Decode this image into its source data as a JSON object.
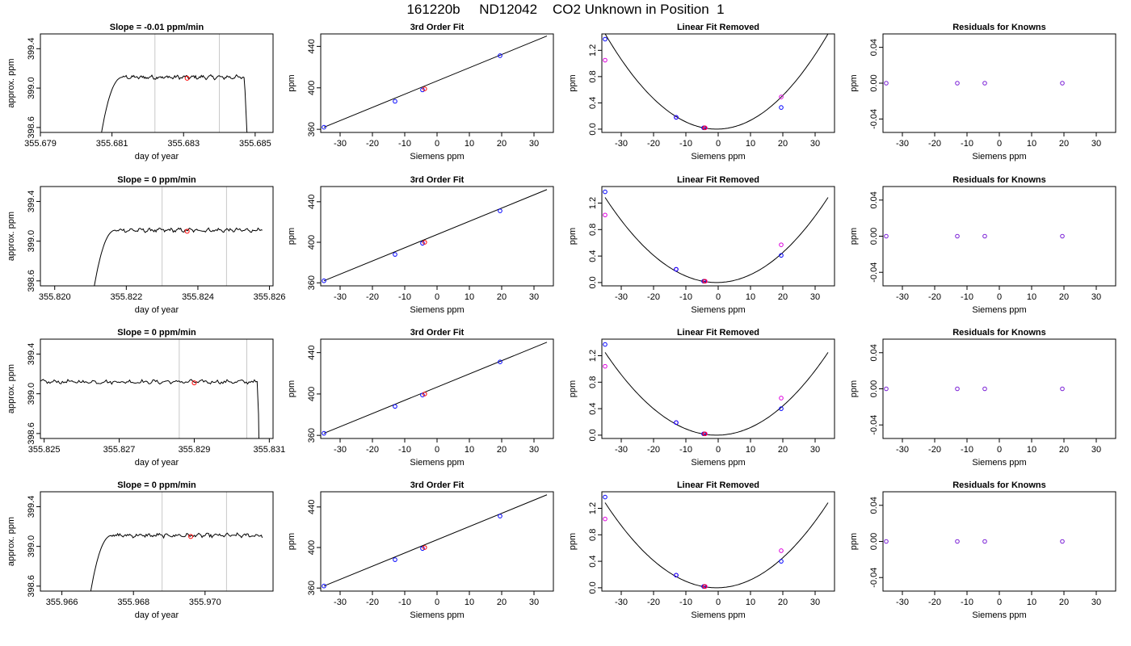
{
  "page": {
    "title": "161220b     ND12042    CO2 Unknown in Position  1"
  },
  "chart_data": [
    {
      "type": "line",
      "row": 1,
      "panel": "trace",
      "title": "Slope =  -0.01  ppm/min",
      "xlabel": "day of year",
      "ylabel": "approx. ppm",
      "xlim": [
        355.679,
        355.6855
      ],
      "ylim": [
        398.55,
        399.55
      ],
      "xticks": [
        355.679,
        355.681,
        355.683,
        355.685
      ],
      "xtick_labels": [
        "355.679",
        "355.681",
        "355.683",
        "355.685"
      ],
      "yticks": [
        398.6,
        399.0,
        399.4
      ],
      "ytick_labels": [
        "398.6",
        "399.0",
        "399.4"
      ],
      "vlines": [
        355.6822,
        355.684
      ],
      "rise": {
        "start": 355.6806,
        "plateau_start": 355.6813
      },
      "plateau": 399.11,
      "end": {
        "drop_start": 355.6847,
        "drop_end": 355.68485
      },
      "data_end": 355.68485,
      "marker": {
        "x": 355.6831,
        "y": 399.1,
        "color": "#ff0000"
      }
    },
    {
      "type": "scatter",
      "row": 1,
      "panel": "fit",
      "title": "3rd Order Fit",
      "xlabel": "Siemens ppm",
      "ylabel": "ppm",
      "xlim": [
        -36,
        36
      ],
      "ylim": [
        357,
        452
      ],
      "xticks": [
        -30,
        -20,
        -10,
        0,
        10,
        20,
        30
      ],
      "yticks": [
        360,
        400,
        440
      ],
      "points": [
        {
          "x": -35,
          "y": 362
        },
        {
          "x": -13,
          "y": 387
        },
        {
          "x": -4.5,
          "y": 398
        },
        {
          "x": -3.8,
          "y": 399
        },
        {
          "x": 19.5,
          "y": 431
        }
      ],
      "fit_line": [
        {
          "x": -35,
          "y": 362
        },
        {
          "x": 34,
          "y": 450
        }
      ]
    },
    {
      "type": "scatter",
      "row": 1,
      "panel": "linear_removed",
      "title": "Linear Fit Removed",
      "xlabel": "Siemens ppm",
      "ylabel": "ppm",
      "xlim": [
        -36,
        36
      ],
      "ylim": [
        -0.05,
        1.45
      ],
      "xticks": [
        -30,
        -20,
        -10,
        0,
        10,
        20,
        30
      ],
      "yticks": [
        0.0,
        0.4,
        0.8,
        1.2
      ],
      "curve_min": -0.5,
      "curve_coeff": 0.00122,
      "curve_offset": 0.0,
      "blue_points": [
        {
          "x": -35,
          "y": 1.37
        },
        {
          "x": -13,
          "y": 0.18
        },
        {
          "x": -4.5,
          "y": 0.02
        },
        {
          "x": 19.5,
          "y": 0.33
        }
      ],
      "magenta_points": [
        {
          "x": -35,
          "y": 1.05
        },
        {
          "x": -13,
          "y": 0.18
        },
        {
          "x": -4,
          "y": 0.02
        },
        {
          "x": 19.5,
          "y": 0.49
        }
      ],
      "red_points": [
        {
          "x": -4.2,
          "y": 0.02
        }
      ]
    },
    {
      "type": "scatter",
      "row": 1,
      "panel": "residuals",
      "title": "Residuals for Knowns",
      "xlabel": "Siemens ppm",
      "ylabel": "ppm",
      "xlim": [
        -36,
        36
      ],
      "ylim": [
        -0.055,
        0.055
      ],
      "xticks": [
        -30,
        -20,
        -10,
        0,
        10,
        20,
        30
      ],
      "yticks": [
        -0.04,
        0.0,
        0.04
      ],
      "ytick_labels": [
        "-0.04",
        "0.00",
        "0.04"
      ],
      "points": [
        {
          "x": -35,
          "y": 0
        },
        {
          "x": -13,
          "y": 0
        },
        {
          "x": -4.5,
          "y": 0
        },
        {
          "x": 19.5,
          "y": 0
        }
      ]
    },
    {
      "type": "line",
      "row": 2,
      "panel": "trace",
      "title": "Slope =  0  ppm/min",
      "xlabel": "day of year",
      "ylabel": "approx. ppm",
      "xlim": [
        355.8196,
        355.8261
      ],
      "ylim": [
        398.55,
        399.55
      ],
      "xticks": [
        355.82,
        355.822,
        355.824,
        355.826
      ],
      "xtick_labels": [
        "355.820",
        "355.822",
        "355.824",
        "355.826"
      ],
      "yticks": [
        398.6,
        399.0,
        399.4
      ],
      "ytick_labels": [
        "398.6",
        "399.0",
        "399.4"
      ],
      "vlines": [
        355.823,
        355.8248
      ],
      "rise": {
        "start": 355.821,
        "plateau_start": 355.8217
      },
      "plateau": 399.11,
      "end": null,
      "data_end": 355.8258,
      "marker": {
        "x": 355.8237,
        "y": 399.1,
        "color": "#ff0000"
      }
    },
    {
      "type": "scatter",
      "row": 2,
      "panel": "fit",
      "title": "3rd Order Fit",
      "xlabel": "Siemens ppm",
      "ylabel": "ppm",
      "xlim": [
        -36,
        36
      ],
      "ylim": [
        357,
        455
      ],
      "xticks": [
        -30,
        -20,
        -10,
        0,
        10,
        20,
        30
      ],
      "yticks": [
        360,
        400,
        440
      ],
      "points": [
        {
          "x": -35,
          "y": 362
        },
        {
          "x": -13,
          "y": 388
        },
        {
          "x": -4.5,
          "y": 399
        },
        {
          "x": -3.8,
          "y": 400
        },
        {
          "x": 19.5,
          "y": 431
        }
      ],
      "fit_line": [
        {
          "x": -35,
          "y": 362
        },
        {
          "x": 34,
          "y": 452
        }
      ]
    },
    {
      "type": "scatter",
      "row": 2,
      "panel": "linear_removed",
      "title": "Linear Fit Removed",
      "xlabel": "Siemens ppm",
      "ylabel": "ppm",
      "xlim": [
        -36,
        36
      ],
      "ylim": [
        -0.05,
        1.45
      ],
      "xticks": [
        -30,
        -20,
        -10,
        0,
        10,
        20,
        30
      ],
      "yticks": [
        0.0,
        0.4,
        0.8,
        1.2
      ],
      "curve_min": -0.5,
      "curve_coeff": 0.00108,
      "curve_offset": 0.0,
      "blue_points": [
        {
          "x": -35,
          "y": 1.37
        },
        {
          "x": -13,
          "y": 0.2
        },
        {
          "x": -4.5,
          "y": 0.02
        },
        {
          "x": 19.5,
          "y": 0.41
        }
      ],
      "magenta_points": [
        {
          "x": -35,
          "y": 1.02
        },
        {
          "x": -13,
          "y": 0.2
        },
        {
          "x": -4,
          "y": 0.02
        },
        {
          "x": 19.5,
          "y": 0.57
        }
      ],
      "red_points": [
        {
          "x": -4.2,
          "y": 0.02
        }
      ]
    },
    {
      "type": "scatter",
      "row": 2,
      "panel": "residuals",
      "title": "Residuals for Knowns",
      "xlabel": "Siemens ppm",
      "ylabel": "ppm",
      "xlim": [
        -36,
        36
      ],
      "ylim": [
        -0.055,
        0.055
      ],
      "xticks": [
        -30,
        -20,
        -10,
        0,
        10,
        20,
        30
      ],
      "yticks": [
        -0.04,
        0.0,
        0.04
      ],
      "ytick_labels": [
        "-0.04",
        "0.00",
        "0.04"
      ],
      "points": [
        {
          "x": -35,
          "y": 0
        },
        {
          "x": -13,
          "y": 0
        },
        {
          "x": -4.5,
          "y": 0
        },
        {
          "x": 19.5,
          "y": 0
        }
      ]
    },
    {
      "type": "line",
      "row": 3,
      "panel": "trace",
      "title": "Slope =  0  ppm/min",
      "xlabel": "day of year",
      "ylabel": "approx. ppm",
      "xlim": [
        355.8249,
        355.8311
      ],
      "ylim": [
        398.55,
        399.55
      ],
      "xticks": [
        355.825,
        355.827,
        355.829,
        355.831
      ],
      "xtick_labels": [
        "355.825",
        "355.827",
        "355.829",
        "355.831"
      ],
      "yticks": [
        398.6,
        399.0,
        399.4
      ],
      "ytick_labels": [
        "398.6",
        "399.0",
        "399.4"
      ],
      "vlines": [
        355.8286,
        355.8304
      ],
      "rise": null,
      "plateau": 399.12,
      "end": {
        "drop_start": 355.8307,
        "drop_end": 355.83075
      },
      "data_end": 355.83075,
      "marker": {
        "x": 355.829,
        "y": 399.11,
        "color": "#ff0000"
      }
    },
    {
      "type": "scatter",
      "row": 3,
      "panel": "fit",
      "title": "3rd Order Fit",
      "xlabel": "Siemens ppm",
      "ylabel": "ppm",
      "xlim": [
        -36,
        36
      ],
      "ylim": [
        357,
        453
      ],
      "xticks": [
        -30,
        -20,
        -10,
        0,
        10,
        20,
        30
      ],
      "yticks": [
        360,
        400,
        440
      ],
      "points": [
        {
          "x": -35,
          "y": 362
        },
        {
          "x": -13,
          "y": 388
        },
        {
          "x": -4.5,
          "y": 399
        },
        {
          "x": -3.8,
          "y": 400
        },
        {
          "x": 19.5,
          "y": 431
        }
      ],
      "fit_line": [
        {
          "x": -35,
          "y": 362
        },
        {
          "x": 34,
          "y": 450
        }
      ]
    },
    {
      "type": "scatter",
      "row": 3,
      "panel": "linear_removed",
      "title": "Linear Fit Removed",
      "xlabel": "Siemens ppm",
      "ylabel": "ppm",
      "xlim": [
        -36,
        36
      ],
      "ylim": [
        -0.05,
        1.45
      ],
      "xticks": [
        -30,
        -20,
        -10,
        0,
        10,
        20,
        30
      ],
      "yticks": [
        0.0,
        0.4,
        0.8,
        1.2
      ],
      "curve_min": -0.5,
      "curve_coeff": 0.00105,
      "curve_offset": 0.0,
      "blue_points": [
        {
          "x": -35,
          "y": 1.37
        },
        {
          "x": -13,
          "y": 0.19
        },
        {
          "x": -4.5,
          "y": 0.02
        },
        {
          "x": 19.5,
          "y": 0.4
        }
      ],
      "magenta_points": [
        {
          "x": -35,
          "y": 1.04
        },
        {
          "x": -13,
          "y": 0.19
        },
        {
          "x": -4,
          "y": 0.02
        },
        {
          "x": 19.5,
          "y": 0.56
        }
      ],
      "red_points": [
        {
          "x": -4.2,
          "y": 0.02
        }
      ]
    },
    {
      "type": "scatter",
      "row": 3,
      "panel": "residuals",
      "title": "Residuals for Knowns",
      "xlabel": "Siemens ppm",
      "ylabel": "ppm",
      "xlim": [
        -36,
        36
      ],
      "ylim": [
        -0.055,
        0.055
      ],
      "xticks": [
        -30,
        -20,
        -10,
        0,
        10,
        20,
        30
      ],
      "yticks": [
        -0.04,
        0.0,
        0.04
      ],
      "ytick_labels": [
        "-0.04",
        "0.00",
        "0.04"
      ],
      "points": [
        {
          "x": -35,
          "y": 0
        },
        {
          "x": -13,
          "y": 0
        },
        {
          "x": -4.5,
          "y": 0
        },
        {
          "x": 19.5,
          "y": 0
        }
      ]
    },
    {
      "type": "line",
      "row": 4,
      "panel": "trace",
      "title": "Slope =  0  ppm/min",
      "xlabel": "day of year",
      "ylabel": "approx. ppm",
      "xlim": [
        355.9654,
        355.9719
      ],
      "ylim": [
        398.55,
        399.55
      ],
      "xticks": [
        355.966,
        355.968,
        355.97
      ],
      "xtick_labels": [
        "355.966",
        "355.968",
        "355.970"
      ],
      "yticks": [
        398.6,
        399.0,
        399.4
      ],
      "ytick_labels": [
        "398.6",
        "399.0",
        "399.4"
      ],
      "vlines": [
        355.9688,
        355.9706
      ],
      "rise": {
        "start": 355.9667,
        "plateau_start": 355.9674
      },
      "plateau": 399.11,
      "end": null,
      "data_end": 355.9716,
      "marker": {
        "x": 355.9696,
        "y": 399.1,
        "color": "#ff0000"
      }
    },
    {
      "type": "scatter",
      "row": 4,
      "panel": "fit",
      "title": "3rd Order Fit",
      "xlabel": "Siemens ppm",
      "ylabel": "ppm",
      "xlim": [
        -36,
        36
      ],
      "ylim": [
        357,
        455
      ],
      "xticks": [
        -30,
        -20,
        -10,
        0,
        10,
        20,
        30
      ],
      "yticks": [
        360,
        400,
        440
      ],
      "points": [
        {
          "x": -35,
          "y": 362
        },
        {
          "x": -13,
          "y": 388
        },
        {
          "x": -4.5,
          "y": 399
        },
        {
          "x": -3.8,
          "y": 400
        },
        {
          "x": 19.5,
          "y": 431
        }
      ],
      "fit_line": [
        {
          "x": -35,
          "y": 362
        },
        {
          "x": 34,
          "y": 452
        }
      ]
    },
    {
      "type": "scatter",
      "row": 4,
      "panel": "linear_removed",
      "title": "Linear Fit Removed",
      "xlabel": "Siemens ppm",
      "ylabel": "ppm",
      "xlim": [
        -36,
        36
      ],
      "ylim": [
        -0.05,
        1.45
      ],
      "xticks": [
        -30,
        -20,
        -10,
        0,
        10,
        20,
        30
      ],
      "yticks": [
        0.0,
        0.4,
        0.8,
        1.2
      ],
      "curve_min": -0.5,
      "curve_coeff": 0.00108,
      "curve_offset": 0.0,
      "blue_points": [
        {
          "x": -35,
          "y": 1.37
        },
        {
          "x": -13,
          "y": 0.19
        },
        {
          "x": -4.5,
          "y": 0.02
        },
        {
          "x": 19.5,
          "y": 0.4
        }
      ],
      "magenta_points": [
        {
          "x": -35,
          "y": 1.04
        },
        {
          "x": -13,
          "y": 0.19
        },
        {
          "x": -4,
          "y": 0.02
        },
        {
          "x": 19.5,
          "y": 0.56
        }
      ],
      "red_points": [
        {
          "x": -4.2,
          "y": 0.02
        }
      ]
    },
    {
      "type": "scatter",
      "row": 4,
      "panel": "residuals",
      "title": "Residuals for Knowns",
      "xlabel": "Siemens ppm",
      "ylabel": "ppm",
      "xlim": [
        -36,
        36
      ],
      "ylim": [
        -0.055,
        0.055
      ],
      "xticks": [
        -30,
        -20,
        -10,
        0,
        10,
        20,
        30
      ],
      "yticks": [
        -0.04,
        0.0,
        0.04
      ],
      "ytick_labels": [
        "-0.04",
        "0.00",
        "0.04"
      ],
      "points": [
        {
          "x": -35,
          "y": 0
        },
        {
          "x": -13,
          "y": 0
        },
        {
          "x": -4.5,
          "y": 0
        },
        {
          "x": 19.5,
          "y": 0
        }
      ]
    }
  ],
  "colors": {
    "axis": "#000000",
    "vline": "#c8c8c8",
    "blue": "#0000ff",
    "magenta": "#dd00dd",
    "red": "#ff0000",
    "purple": "#7a1fd6"
  }
}
